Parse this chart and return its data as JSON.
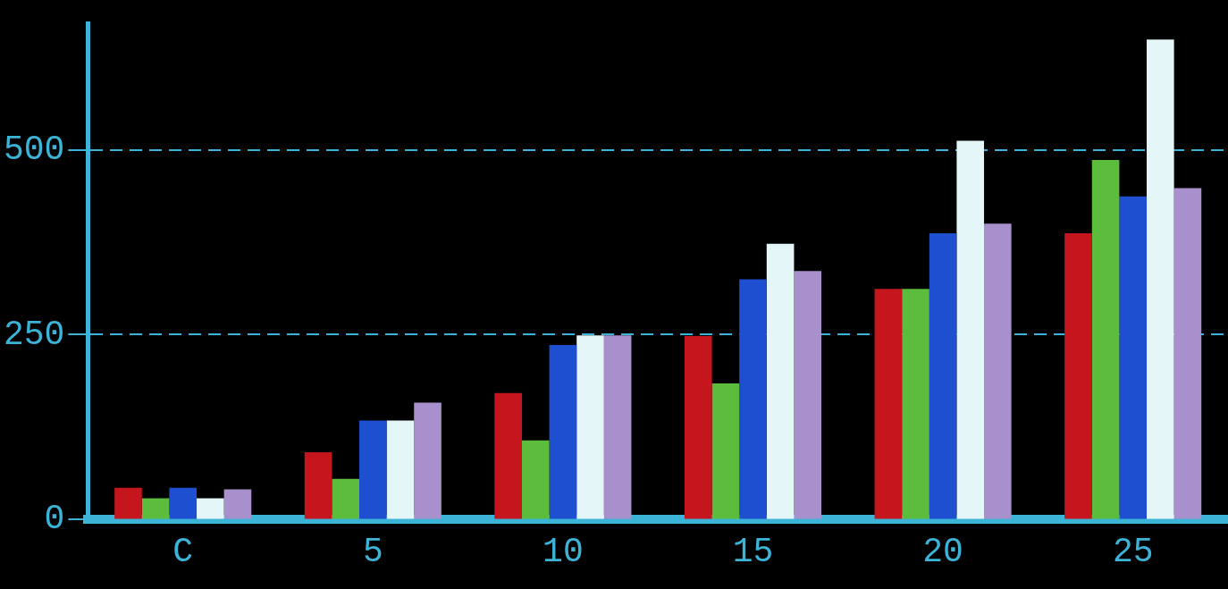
{
  "chart_data": {
    "type": "bar",
    "categories": [
      "C",
      "5",
      "10",
      "15",
      "20",
      "25"
    ],
    "series": [
      {
        "color": "#c4161c",
        "values": [
          43,
          91,
          171,
          248,
          312,
          387
        ]
      },
      {
        "color": "#5cbd3c",
        "values": [
          29,
          55,
          107,
          184,
          312,
          486
        ]
      },
      {
        "color": "#1e4fd0",
        "values": [
          43,
          134,
          236,
          325,
          387,
          437
        ]
      },
      {
        "color": "#e4f6f8",
        "values": [
          29,
          134,
          249,
          373,
          512,
          649
        ]
      },
      {
        "color": "#a890cc",
        "values": [
          41,
          158,
          249,
          336,
          400,
          448
        ]
      }
    ],
    "ylim": [
      0,
      670
    ],
    "yticks": [
      0,
      250,
      500
    ],
    "grid": "y",
    "legend": false
  }
}
